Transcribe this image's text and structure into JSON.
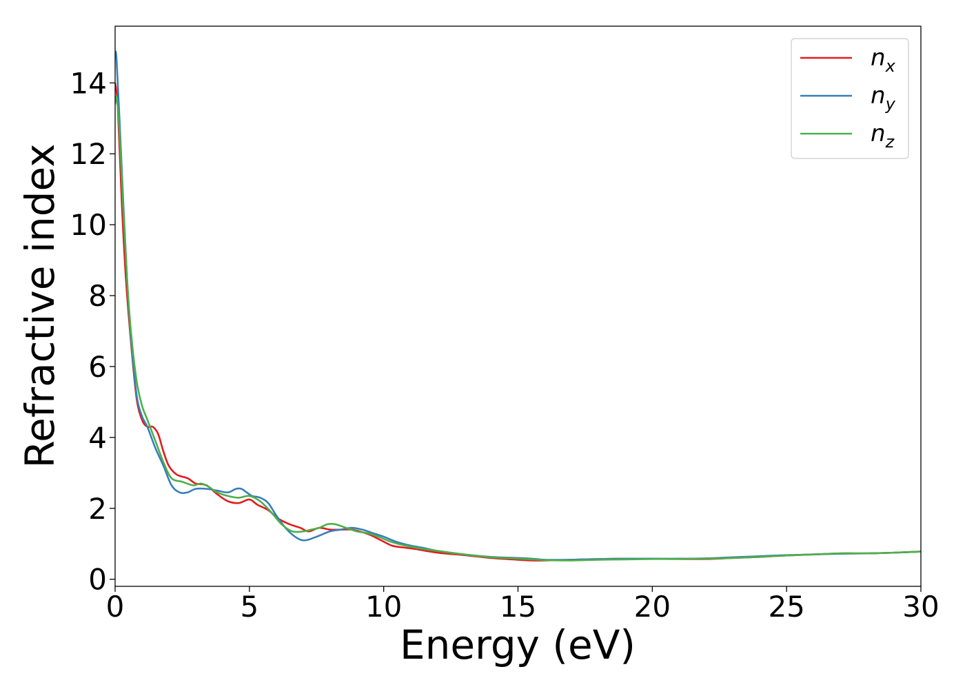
{
  "chart_data": {
    "type": "line",
    "title": "",
    "xlabel": "Energy (eV)",
    "ylabel": "Refractive index",
    "xlim": [
      0,
      30
    ],
    "ylim": [
      -0.2,
      15.6
    ],
    "xticks": [
      0,
      5,
      10,
      15,
      20,
      25,
      30
    ],
    "yticks": [
      0,
      2,
      4,
      6,
      8,
      10,
      12,
      14
    ],
    "grid": false,
    "legend_position": "top-right",
    "series": [
      {
        "name": "n",
        "subscript": "x",
        "color": "#e41a1c",
        "x": [
          0,
          0.1,
          0.25,
          0.4,
          0.6,
          0.8,
          1.0,
          1.2,
          1.4,
          1.6,
          1.8,
          2.0,
          2.3,
          2.7,
          3.0,
          3.4,
          3.8,
          4.2,
          4.6,
          5.0,
          5.3,
          5.7,
          6.1,
          6.5,
          6.9,
          7.2,
          7.6,
          8.0,
          8.4,
          8.8,
          9.1,
          9.5,
          9.9,
          10.3,
          10.7,
          11.2,
          12.0,
          13.0,
          14.0,
          15.0,
          15.5,
          16.0,
          17.0,
          18.0,
          19.0,
          20.0,
          21.0,
          22.0,
          23.0,
          24.0,
          25.0,
          26.0,
          27.0,
          28.0,
          29.0,
          30.0
        ],
        "values": [
          14.0,
          13.3,
          10.6,
          8.5,
          6.6,
          5.1,
          4.5,
          4.3,
          4.3,
          4.1,
          3.6,
          3.2,
          2.95,
          2.85,
          2.7,
          2.65,
          2.4,
          2.2,
          2.15,
          2.25,
          2.1,
          1.95,
          1.7,
          1.55,
          1.45,
          1.35,
          1.45,
          1.4,
          1.4,
          1.4,
          1.35,
          1.25,
          1.1,
          0.95,
          0.9,
          0.85,
          0.75,
          0.68,
          0.6,
          0.55,
          0.53,
          0.53,
          0.55,
          0.57,
          0.58,
          0.58,
          0.57,
          0.57,
          0.6,
          0.63,
          0.67,
          0.7,
          0.73,
          0.73,
          0.75,
          0.78
        ]
      },
      {
        "name": "n",
        "subscript": "y",
        "color": "#377eb8",
        "x": [
          0,
          0.05,
          0.15,
          0.3,
          0.45,
          0.6,
          0.8,
          1.0,
          1.2,
          1.5,
          1.8,
          2.1,
          2.4,
          2.7,
          3.0,
          3.4,
          3.8,
          4.2,
          4.5,
          4.7,
          4.9,
          5.1,
          5.4,
          5.7,
          6.0,
          6.4,
          6.8,
          7.1,
          7.5,
          8.0,
          8.4,
          8.8,
          9.2,
          9.6,
          10.0,
          10.5,
          11.0,
          11.5,
          12.0,
          13.0,
          14.0,
          15.0,
          15.5,
          16.0,
          17.0,
          18.0,
          19.0,
          20.0,
          21.0,
          22.0,
          23.0,
          24.0,
          25.0,
          26.0,
          27.0,
          28.0,
          29.0,
          30.0
        ],
        "values": [
          14.9,
          14.7,
          13.2,
          10.7,
          8.4,
          6.7,
          5.2,
          4.6,
          4.3,
          3.7,
          3.2,
          2.65,
          2.45,
          2.45,
          2.55,
          2.55,
          2.5,
          2.45,
          2.55,
          2.55,
          2.45,
          2.35,
          2.3,
          2.15,
          1.8,
          1.4,
          1.15,
          1.1,
          1.2,
          1.35,
          1.4,
          1.45,
          1.4,
          1.3,
          1.2,
          1.05,
          0.95,
          0.88,
          0.8,
          0.7,
          0.63,
          0.6,
          0.58,
          0.55,
          0.55,
          0.57,
          0.58,
          0.58,
          0.58,
          0.59,
          0.62,
          0.65,
          0.68,
          0.7,
          0.72,
          0.73,
          0.75,
          0.78
        ]
      },
      {
        "name": "n",
        "subscript": "z",
        "color": "#4daf4a",
        "x": [
          0,
          0.05,
          0.15,
          0.3,
          0.45,
          0.6,
          0.8,
          1.0,
          1.2,
          1.5,
          1.8,
          2.1,
          2.5,
          2.9,
          3.2,
          3.5,
          3.8,
          4.2,
          4.6,
          5.0,
          5.4,
          5.8,
          6.2,
          6.6,
          7.0,
          7.3,
          7.6,
          7.9,
          8.2,
          8.6,
          9.0,
          9.4,
          9.8,
          10.3,
          10.8,
          11.5,
          12.0,
          13.0,
          14.0,
          15.0,
          15.5,
          16.0,
          17.0,
          18.0,
          19.0,
          20.0,
          21.0,
          22.0,
          23.0,
          24.0,
          25.0,
          26.0,
          27.0,
          28.0,
          29.0,
          30.0
        ],
        "values": [
          13.4,
          13.6,
          12.8,
          10.5,
          8.4,
          6.9,
          5.6,
          4.9,
          4.5,
          3.9,
          3.3,
          2.85,
          2.75,
          2.65,
          2.7,
          2.6,
          2.45,
          2.35,
          2.3,
          2.35,
          2.2,
          1.9,
          1.55,
          1.35,
          1.35,
          1.4,
          1.45,
          1.55,
          1.55,
          1.45,
          1.35,
          1.3,
          1.2,
          1.05,
          0.95,
          0.85,
          0.8,
          0.7,
          0.62,
          0.58,
          0.56,
          0.54,
          0.53,
          0.55,
          0.56,
          0.57,
          0.57,
          0.58,
          0.6,
          0.63,
          0.67,
          0.7,
          0.73,
          0.73,
          0.75,
          0.78
        ]
      }
    ]
  }
}
